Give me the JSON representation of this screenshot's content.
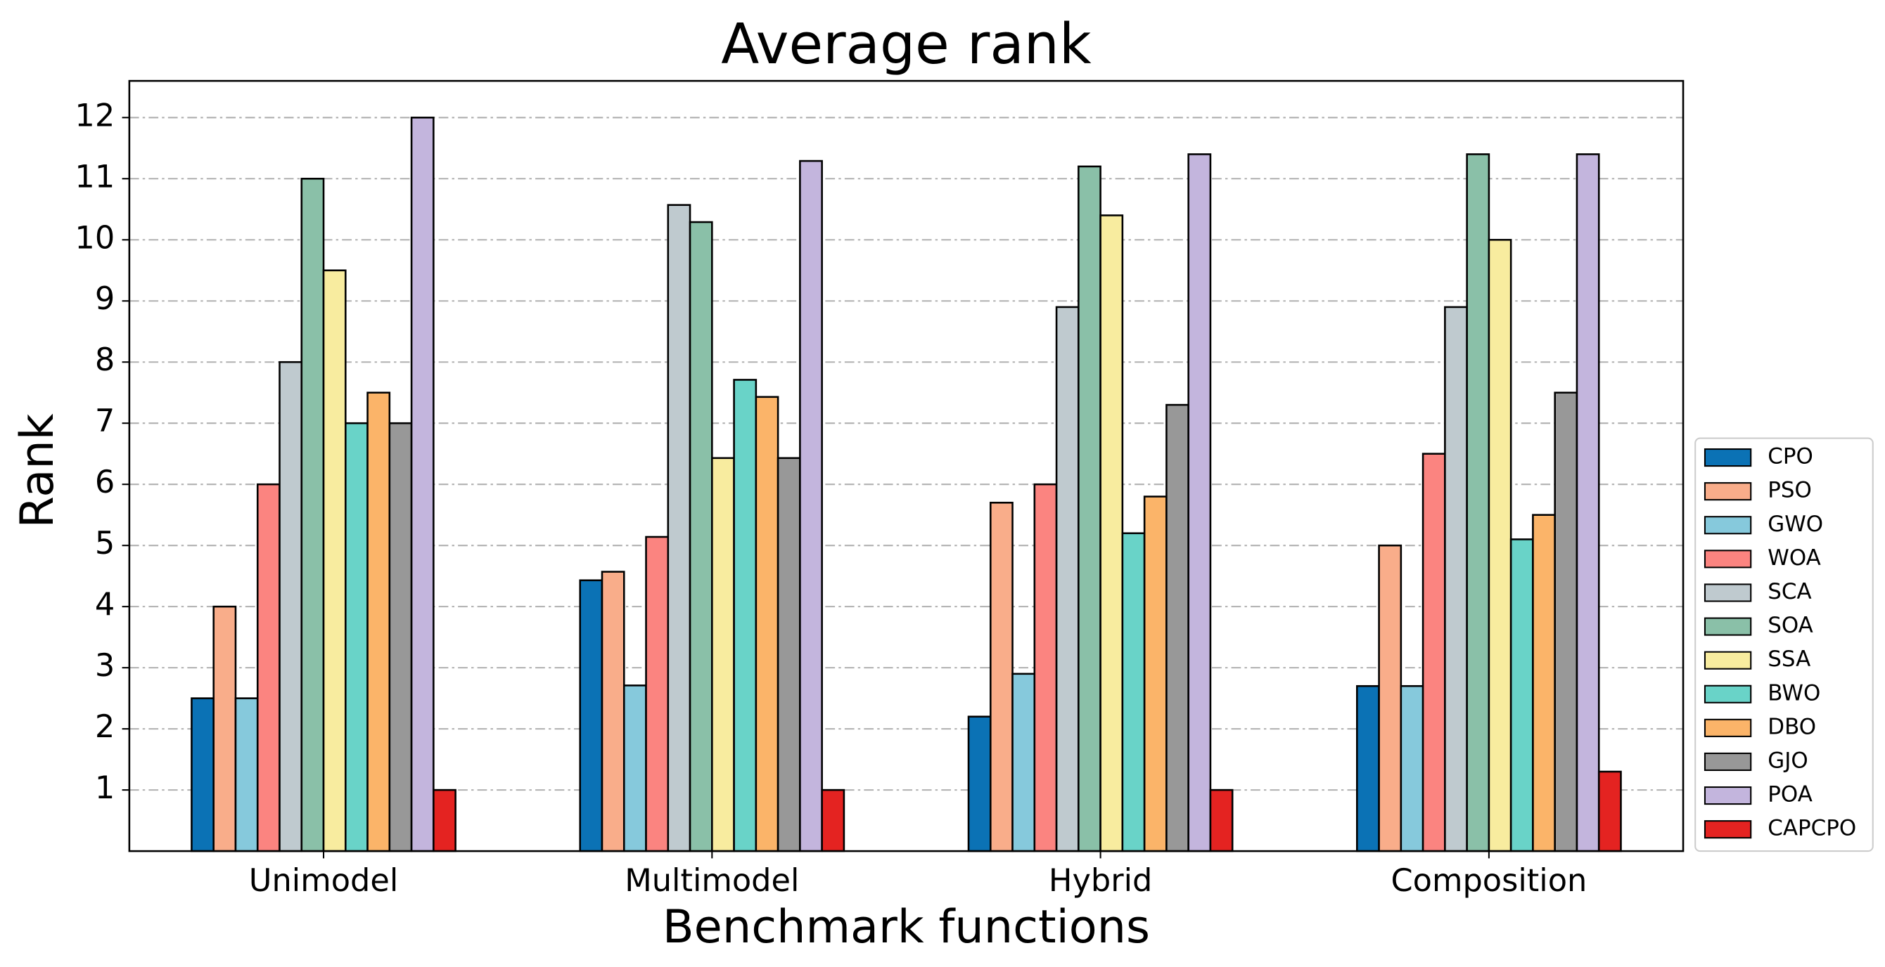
{
  "chart_data": {
    "type": "bar",
    "title": "Average rank",
    "xlabel": "Benchmark functions",
    "ylabel": "Rank",
    "categories": [
      "Unimodel",
      "Multimodel",
      "Hybrid",
      "Composition"
    ],
    "series": [
      {
        "name": "CPO",
        "color": "#0b72b5",
        "values": [
          2.5,
          4.43,
          2.2,
          2.7
        ]
      },
      {
        "name": "PSO",
        "color": "#f9ad8a",
        "values": [
          4,
          4.57,
          5.7,
          5
        ]
      },
      {
        "name": "GWO",
        "color": "#86c9dc",
        "values": [
          2.5,
          2.71,
          2.9,
          2.7
        ]
      },
      {
        "name": "WOA",
        "color": "#fb8480",
        "values": [
          6,
          5.14,
          6,
          6.5
        ]
      },
      {
        "name": "SCA",
        "color": "#bfcacf",
        "values": [
          8,
          10.57,
          8.9,
          8.9
        ]
      },
      {
        "name": "SOA",
        "color": "#8ac0a8",
        "values": [
          11,
          10.29,
          11.2,
          11.4
        ]
      },
      {
        "name": "SSA",
        "color": "#f8ec9f",
        "values": [
          9.5,
          6.43,
          10.4,
          10
        ]
      },
      {
        "name": "BWO",
        "color": "#69d3c8",
        "values": [
          7,
          7.71,
          5.2,
          5.1
        ]
      },
      {
        "name": "DBO",
        "color": "#fbb469",
        "values": [
          7.5,
          7.43,
          5.8,
          5.5
        ]
      },
      {
        "name": "GJO",
        "color": "#989898",
        "values": [
          7,
          6.43,
          7.3,
          7.5
        ]
      },
      {
        "name": "POA",
        "color": "#c3b5dd",
        "values": [
          12,
          11.29,
          11.4,
          11.4
        ]
      },
      {
        "name": "CAPCPO",
        "color": "#e42321",
        "values": [
          1,
          1,
          1,
          1.3
        ]
      }
    ],
    "ylim": [
      0,
      12.6
    ],
    "yticks": [
      1,
      2,
      3,
      4,
      5,
      6,
      7,
      8,
      9,
      10,
      11,
      12
    ],
    "grid": true,
    "legend": "right"
  }
}
